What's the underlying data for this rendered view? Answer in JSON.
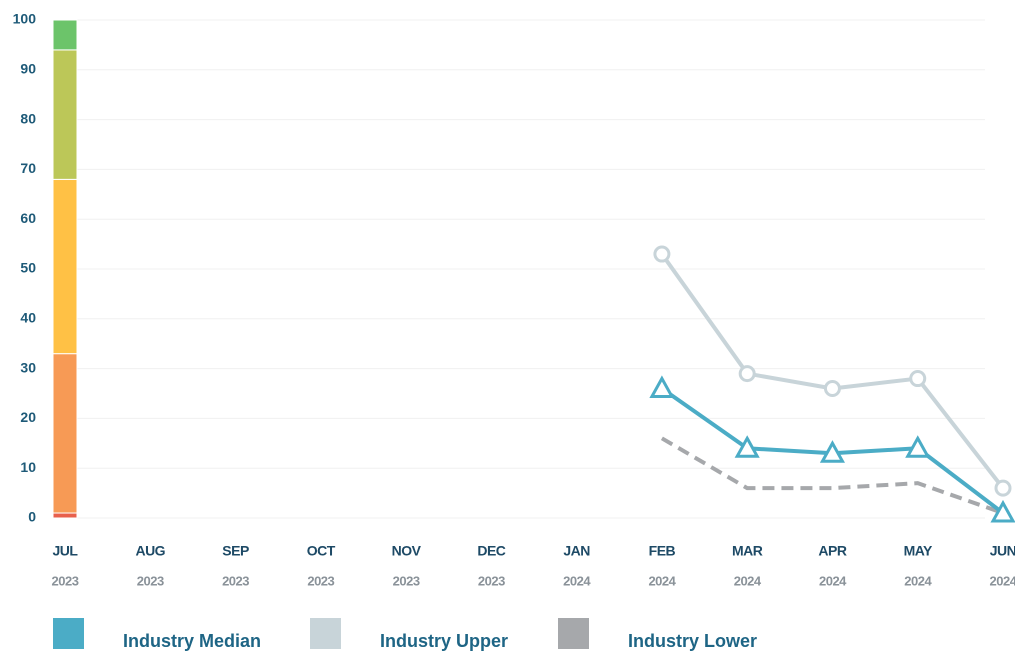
{
  "chart_data": {
    "type": "line",
    "categories": [
      [
        "JUL",
        "2023"
      ],
      [
        "AUG",
        "2023"
      ],
      [
        "SEP",
        "2023"
      ],
      [
        "OCT",
        "2023"
      ],
      [
        "NOV",
        "2023"
      ],
      [
        "DEC",
        "2023"
      ],
      [
        "JAN",
        "2024"
      ],
      [
        "FEB",
        "2024"
      ],
      [
        "MAR",
        "2024"
      ],
      [
        "APR",
        "2024"
      ],
      [
        "MAY",
        "2024"
      ],
      [
        "JUN",
        "2024"
      ]
    ],
    "ylim": [
      0,
      100
    ],
    "yticks": [
      0,
      10,
      20,
      30,
      40,
      50,
      60,
      70,
      80,
      90,
      100
    ],
    "grid": true,
    "bar_segments": [
      {
        "color": "#e8604c",
        "value": 1
      },
      {
        "color": "#f79a55",
        "value": 32
      },
      {
        "color": "#ffc145",
        "value": 35
      },
      {
        "color": "#bcc758",
        "value": 26
      },
      {
        "color": "#6cc46a",
        "value": 6
      }
    ],
    "series": [
      {
        "name": "Industry Median",
        "color": "#4bacc6",
        "marker": "triangle",
        "values": [
          null,
          null,
          null,
          null,
          null,
          null,
          null,
          26,
          14,
          13,
          14,
          1
        ]
      },
      {
        "name": "Industry Upper",
        "color": "#c8d4d9",
        "marker": "circle",
        "values": [
          null,
          null,
          null,
          null,
          null,
          null,
          null,
          53,
          29,
          26,
          28,
          6
        ]
      },
      {
        "name": "Industry Lower",
        "color": "#a6a8ab",
        "dashed": true,
        "values": [
          null,
          null,
          null,
          null,
          null,
          null,
          null,
          16,
          6,
          6,
          7,
          1
        ]
      }
    ]
  }
}
